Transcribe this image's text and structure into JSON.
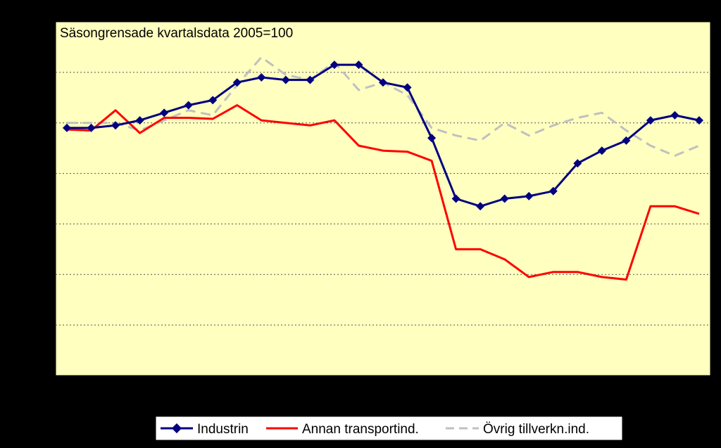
{
  "chart_data": {
    "type": "line",
    "title": "Säsongrensade kvartalsdata 2005=100",
    "xlabel": "",
    "ylabel": "",
    "ylim": [
      0,
      7
    ],
    "grid": true,
    "legend_position": "bottom",
    "colors": {
      "background": "#000000",
      "plot_area": "#FFFFC0",
      "grid": "#555555",
      "industrin": "#000080",
      "annan": "#FF0000",
      "ovrig": "#C0C0C0"
    },
    "x": [
      1,
      2,
      3,
      4,
      5,
      6,
      7,
      8,
      9,
      10,
      11,
      12,
      13,
      14,
      15,
      16,
      17,
      18,
      19,
      20,
      21,
      22,
      23,
      24,
      25,
      26,
      27
    ],
    "series": [
      {
        "name": "Industrin",
        "style": "solid-diamond",
        "values": [
          4.9,
          4.9,
          4.95,
          5.05,
          5.2,
          5.35,
          5.45,
          5.8,
          5.9,
          5.85,
          5.85,
          6.15,
          6.15,
          5.8,
          5.7,
          4.7,
          3.5,
          3.35,
          3.5,
          3.55,
          3.65,
          4.2,
          4.45,
          4.65,
          5.05,
          5.15,
          5.05
        ]
      },
      {
        "name": "Annan transportind.",
        "style": "solid",
        "values": [
          4.87,
          4.85,
          5.25,
          4.8,
          5.1,
          5.1,
          5.08,
          5.35,
          5.05,
          5.0,
          4.95,
          5.05,
          4.55,
          4.45,
          4.43,
          4.25,
          2.5,
          2.5,
          2.3,
          1.95,
          2.05,
          2.05,
          1.95,
          1.9,
          3.35,
          3.35,
          3.2
        ]
      },
      {
        "name": "Övrig tillverkn.ind.",
        "style": "dashed",
        "values": [
          5.0,
          5.0,
          5.0,
          4.85,
          5.05,
          5.25,
          5.15,
          5.75,
          6.3,
          5.95,
          5.85,
          6.2,
          5.65,
          5.8,
          5.55,
          4.9,
          4.75,
          4.65,
          5.0,
          4.75,
          4.95,
          5.1,
          5.2,
          4.85,
          4.55,
          4.35,
          4.55
        ]
      }
    ]
  }
}
